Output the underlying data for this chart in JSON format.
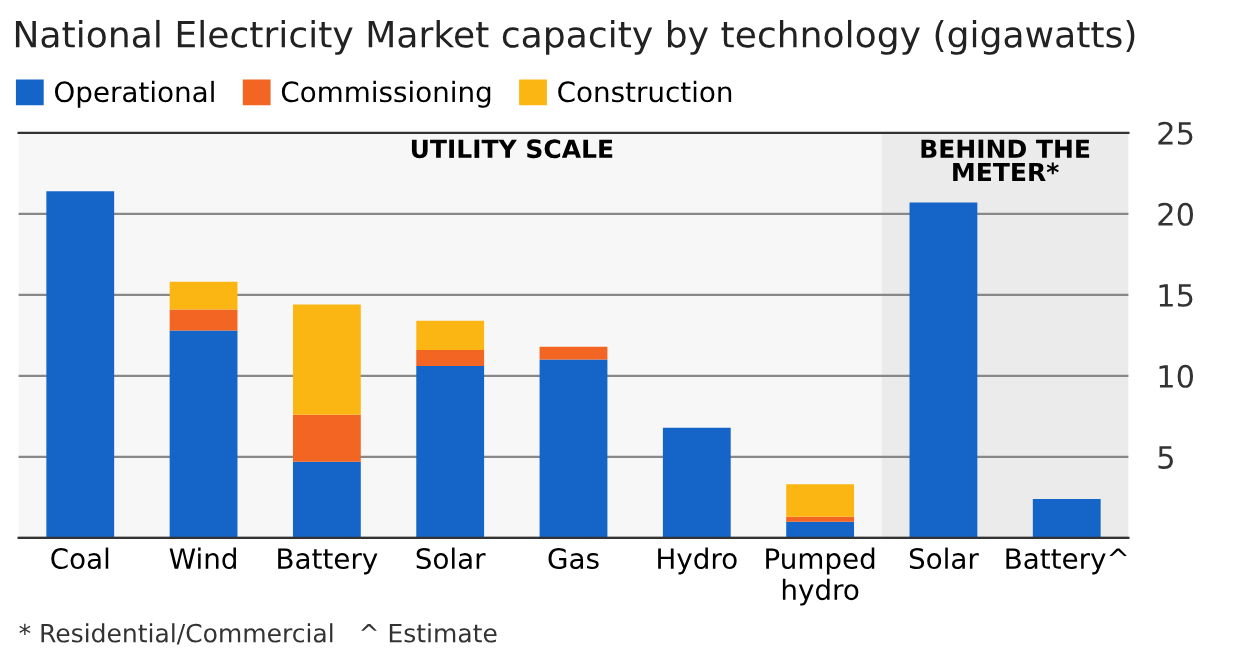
{
  "chart_data": {
    "type": "bar",
    "title": "National Electricity Market capacity by technology (gigawatts)",
    "stacked": true,
    "categories": [
      "Coal",
      "Wind",
      "Battery",
      "Solar",
      "Gas",
      "Hydro",
      "Pumped\nhydro",
      "Solar",
      "Battery^"
    ],
    "series": [
      {
        "name": "Operational",
        "color": "#1565c8",
        "values": [
          21.4,
          12.8,
          4.7,
          10.6,
          11.0,
          6.8,
          1.0,
          20.7,
          2.4
        ]
      },
      {
        "name": "Commissioning",
        "color": "#f26522",
        "values": [
          null,
          1.3,
          2.9,
          1.0,
          0.8,
          null,
          0.3,
          null,
          null
        ]
      },
      {
        "name": "Construction",
        "color": "#fbb614",
        "values": [
          null,
          1.7,
          6.8,
          1.8,
          null,
          null,
          2.0,
          null,
          null
        ]
      }
    ],
    "ylim": [
      0,
      25
    ],
    "yticks": [
      {
        "value": 0,
        "label": null
      },
      5,
      10,
      15,
      20,
      25
    ],
    "grid": "y",
    "legend": "top left",
    "annotations": [
      "UTILITY SCALE",
      "BEHIND THE\nMETER*",
      "* Residential/Commercial   ^ Estimate"
    ]
  }
}
